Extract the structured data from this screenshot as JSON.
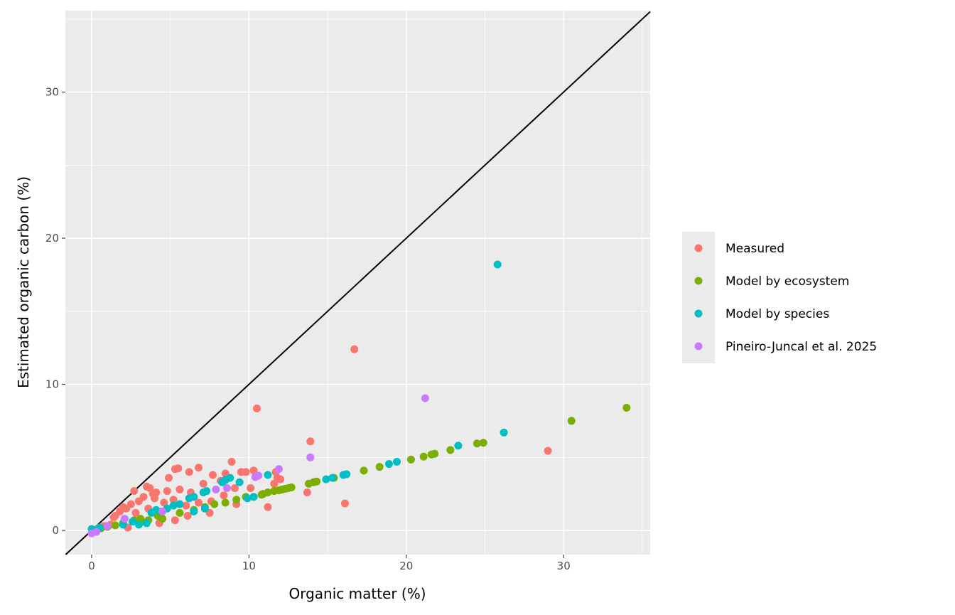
{
  "chart_data": {
    "type": "scatter",
    "title": "",
    "xlabel": "Organic matter (%)",
    "ylabel": "Estimated organic carbon (%)",
    "xlim": [
      -1.67,
      35.5
    ],
    "ylim": [
      -1.65,
      35.57
    ],
    "xticks": [
      0,
      10,
      20,
      30
    ],
    "yticks": [
      0,
      10,
      20,
      30
    ],
    "grid": true,
    "legend_position": "right",
    "reference_line": "y = x",
    "series": [
      {
        "name": "Measured",
        "color": "#F8766D",
        "points": [
          [
            16.7,
            12.4
          ],
          [
            10.5,
            8.35
          ],
          [
            13.9,
            6.1
          ],
          [
            29,
            5.45
          ],
          [
            16.1,
            1.85
          ],
          [
            13.7,
            2.6
          ],
          [
            11.2,
            1.6
          ],
          [
            8.9,
            4.7
          ],
          [
            6.8,
            4.3
          ],
          [
            5.3,
            4.2
          ],
          [
            5.5,
            4.25
          ],
          [
            6.2,
            4.0
          ],
          [
            4.9,
            3.6
          ],
          [
            9.5,
            4.0
          ],
          [
            9.8,
            4.0
          ],
          [
            10.3,
            4.1
          ],
          [
            11.7,
            4.0
          ],
          [
            11.8,
            3.6
          ],
          [
            12,
            3.5
          ],
          [
            7.7,
            3.8
          ],
          [
            8.5,
            3.9
          ],
          [
            3.5,
            3.0
          ],
          [
            2.7,
            2.7
          ],
          [
            3.7,
            2.9
          ],
          [
            4.1,
            2.6
          ],
          [
            4.8,
            2.7
          ],
          [
            5.6,
            2.8
          ],
          [
            6.3,
            2.6
          ],
          [
            7.1,
            3.2
          ],
          [
            8.2,
            3.4
          ],
          [
            9.1,
            2.9
          ],
          [
            10.1,
            2.9
          ],
          [
            11.6,
            3.2
          ],
          [
            3.0,
            2.0
          ],
          [
            2.5,
            1.8
          ],
          [
            2.2,
            1.5
          ],
          [
            1.8,
            1.3
          ],
          [
            1.5,
            1.0
          ],
          [
            3.3,
            2.3
          ],
          [
            4.0,
            2.2
          ],
          [
            4.6,
            1.9
          ],
          [
            5.2,
            2.1
          ],
          [
            6.0,
            1.7
          ],
          [
            6.8,
            1.9
          ],
          [
            7.6,
            2.0
          ],
          [
            8.4,
            2.4
          ],
          [
            9.2,
            1.8
          ],
          [
            2.8,
            1.2
          ],
          [
            3.6,
            1.5
          ],
          [
            4.4,
            1.3
          ],
          [
            5.3,
            0.7
          ],
          [
            4.3,
            0.5
          ],
          [
            2.3,
            0.2
          ],
          [
            1.2,
            0.4
          ],
          [
            0.8,
            0.3
          ],
          [
            7.5,
            1.2
          ],
          [
            6.1,
            1.0
          ],
          [
            3.9,
            2.5
          ],
          [
            2.0,
            1.6
          ],
          [
            1.4,
            0.9
          ]
        ]
      },
      {
        "name": "Model by ecosystem",
        "color": "#7CAE00",
        "points": [
          [
            34,
            8.4
          ],
          [
            30.5,
            7.5
          ],
          [
            24.9,
            6.0
          ],
          [
            24.5,
            5.95
          ],
          [
            22.8,
            5.5
          ],
          [
            21.8,
            5.25
          ],
          [
            21.6,
            5.2
          ],
          [
            21.1,
            5.05
          ],
          [
            20.3,
            4.85
          ],
          [
            18.3,
            4.35
          ],
          [
            17.3,
            4.1
          ],
          [
            15.4,
            3.6
          ],
          [
            14.3,
            3.35
          ],
          [
            14.1,
            3.3
          ],
          [
            13.8,
            3.2
          ],
          [
            12.7,
            2.95
          ],
          [
            12.5,
            2.9
          ],
          [
            12.3,
            2.85
          ],
          [
            12.1,
            2.8
          ],
          [
            11.9,
            2.75
          ],
          [
            11.6,
            2.7
          ],
          [
            11.2,
            2.6
          ],
          [
            10.9,
            2.5
          ],
          [
            10.8,
            2.45
          ],
          [
            9.8,
            2.3
          ],
          [
            9.2,
            2.1
          ],
          [
            8.5,
            1.9
          ],
          [
            7.8,
            1.8
          ],
          [
            7.2,
            1.6
          ],
          [
            6.5,
            1.4
          ],
          [
            5.6,
            1.2
          ],
          [
            4.2,
            1.0
          ],
          [
            3.1,
            0.8
          ],
          [
            2.7,
            0.7
          ],
          [
            2.0,
            0.5
          ],
          [
            1.5,
            0.35
          ],
          [
            1.0,
            0.25
          ],
          [
            0.6,
            0.15
          ],
          [
            0.3,
            0.05
          ],
          [
            3.6,
            0.7
          ],
          [
            4.5,
            0.8
          ],
          [
            3.2,
            0.6
          ]
        ]
      },
      {
        "name": "Model by species",
        "color": "#00BFC4",
        "points": [
          [
            25.8,
            18.2
          ],
          [
            26.2,
            6.7
          ],
          [
            23.3,
            5.8
          ],
          [
            19.4,
            4.7
          ],
          [
            18.9,
            4.55
          ],
          [
            16.2,
            3.85
          ],
          [
            16,
            3.8
          ],
          [
            15.3,
            3.6
          ],
          [
            14.9,
            3.5
          ],
          [
            11.2,
            3.8
          ],
          [
            10.3,
            2.3
          ],
          [
            9.9,
            2.2
          ],
          [
            8.8,
            3.6
          ],
          [
            8.5,
            3.45
          ],
          [
            8.3,
            3.3
          ],
          [
            9.4,
            3.3
          ],
          [
            7.3,
            2.7
          ],
          [
            7.1,
            2.6
          ],
          [
            6.5,
            2.3
          ],
          [
            6.2,
            2.2
          ],
          [
            5.6,
            1.8
          ],
          [
            5.2,
            1.7
          ],
          [
            4.8,
            1.5
          ],
          [
            3.8,
            1.2
          ],
          [
            3.5,
            0.5
          ],
          [
            7.2,
            1.5
          ],
          [
            6.5,
            1.3
          ],
          [
            2,
            0.4
          ],
          [
            1,
            0.3
          ],
          [
            0.5,
            0.2
          ],
          [
            0,
            0.1
          ],
          [
            3.0,
            0.4
          ],
          [
            4.1,
            1.4
          ],
          [
            2.6,
            0.6
          ]
        ]
      },
      {
        "name": "Pineiro-Juncal et al. 2025",
        "color": "#C77CFF",
        "points": [
          [
            21.2,
            9.05
          ],
          [
            13.9,
            5.0
          ],
          [
            11.9,
            4.2
          ],
          [
            10.6,
            3.75
          ],
          [
            10.4,
            3.65
          ],
          [
            7.9,
            2.8
          ],
          [
            8.6,
            2.9
          ],
          [
            2.1,
            0.8
          ],
          [
            0,
            -0.2
          ],
          [
            0.3,
            -0.1
          ],
          [
            1,
            0.3
          ],
          [
            4.5,
            1.3
          ]
        ]
      }
    ]
  }
}
